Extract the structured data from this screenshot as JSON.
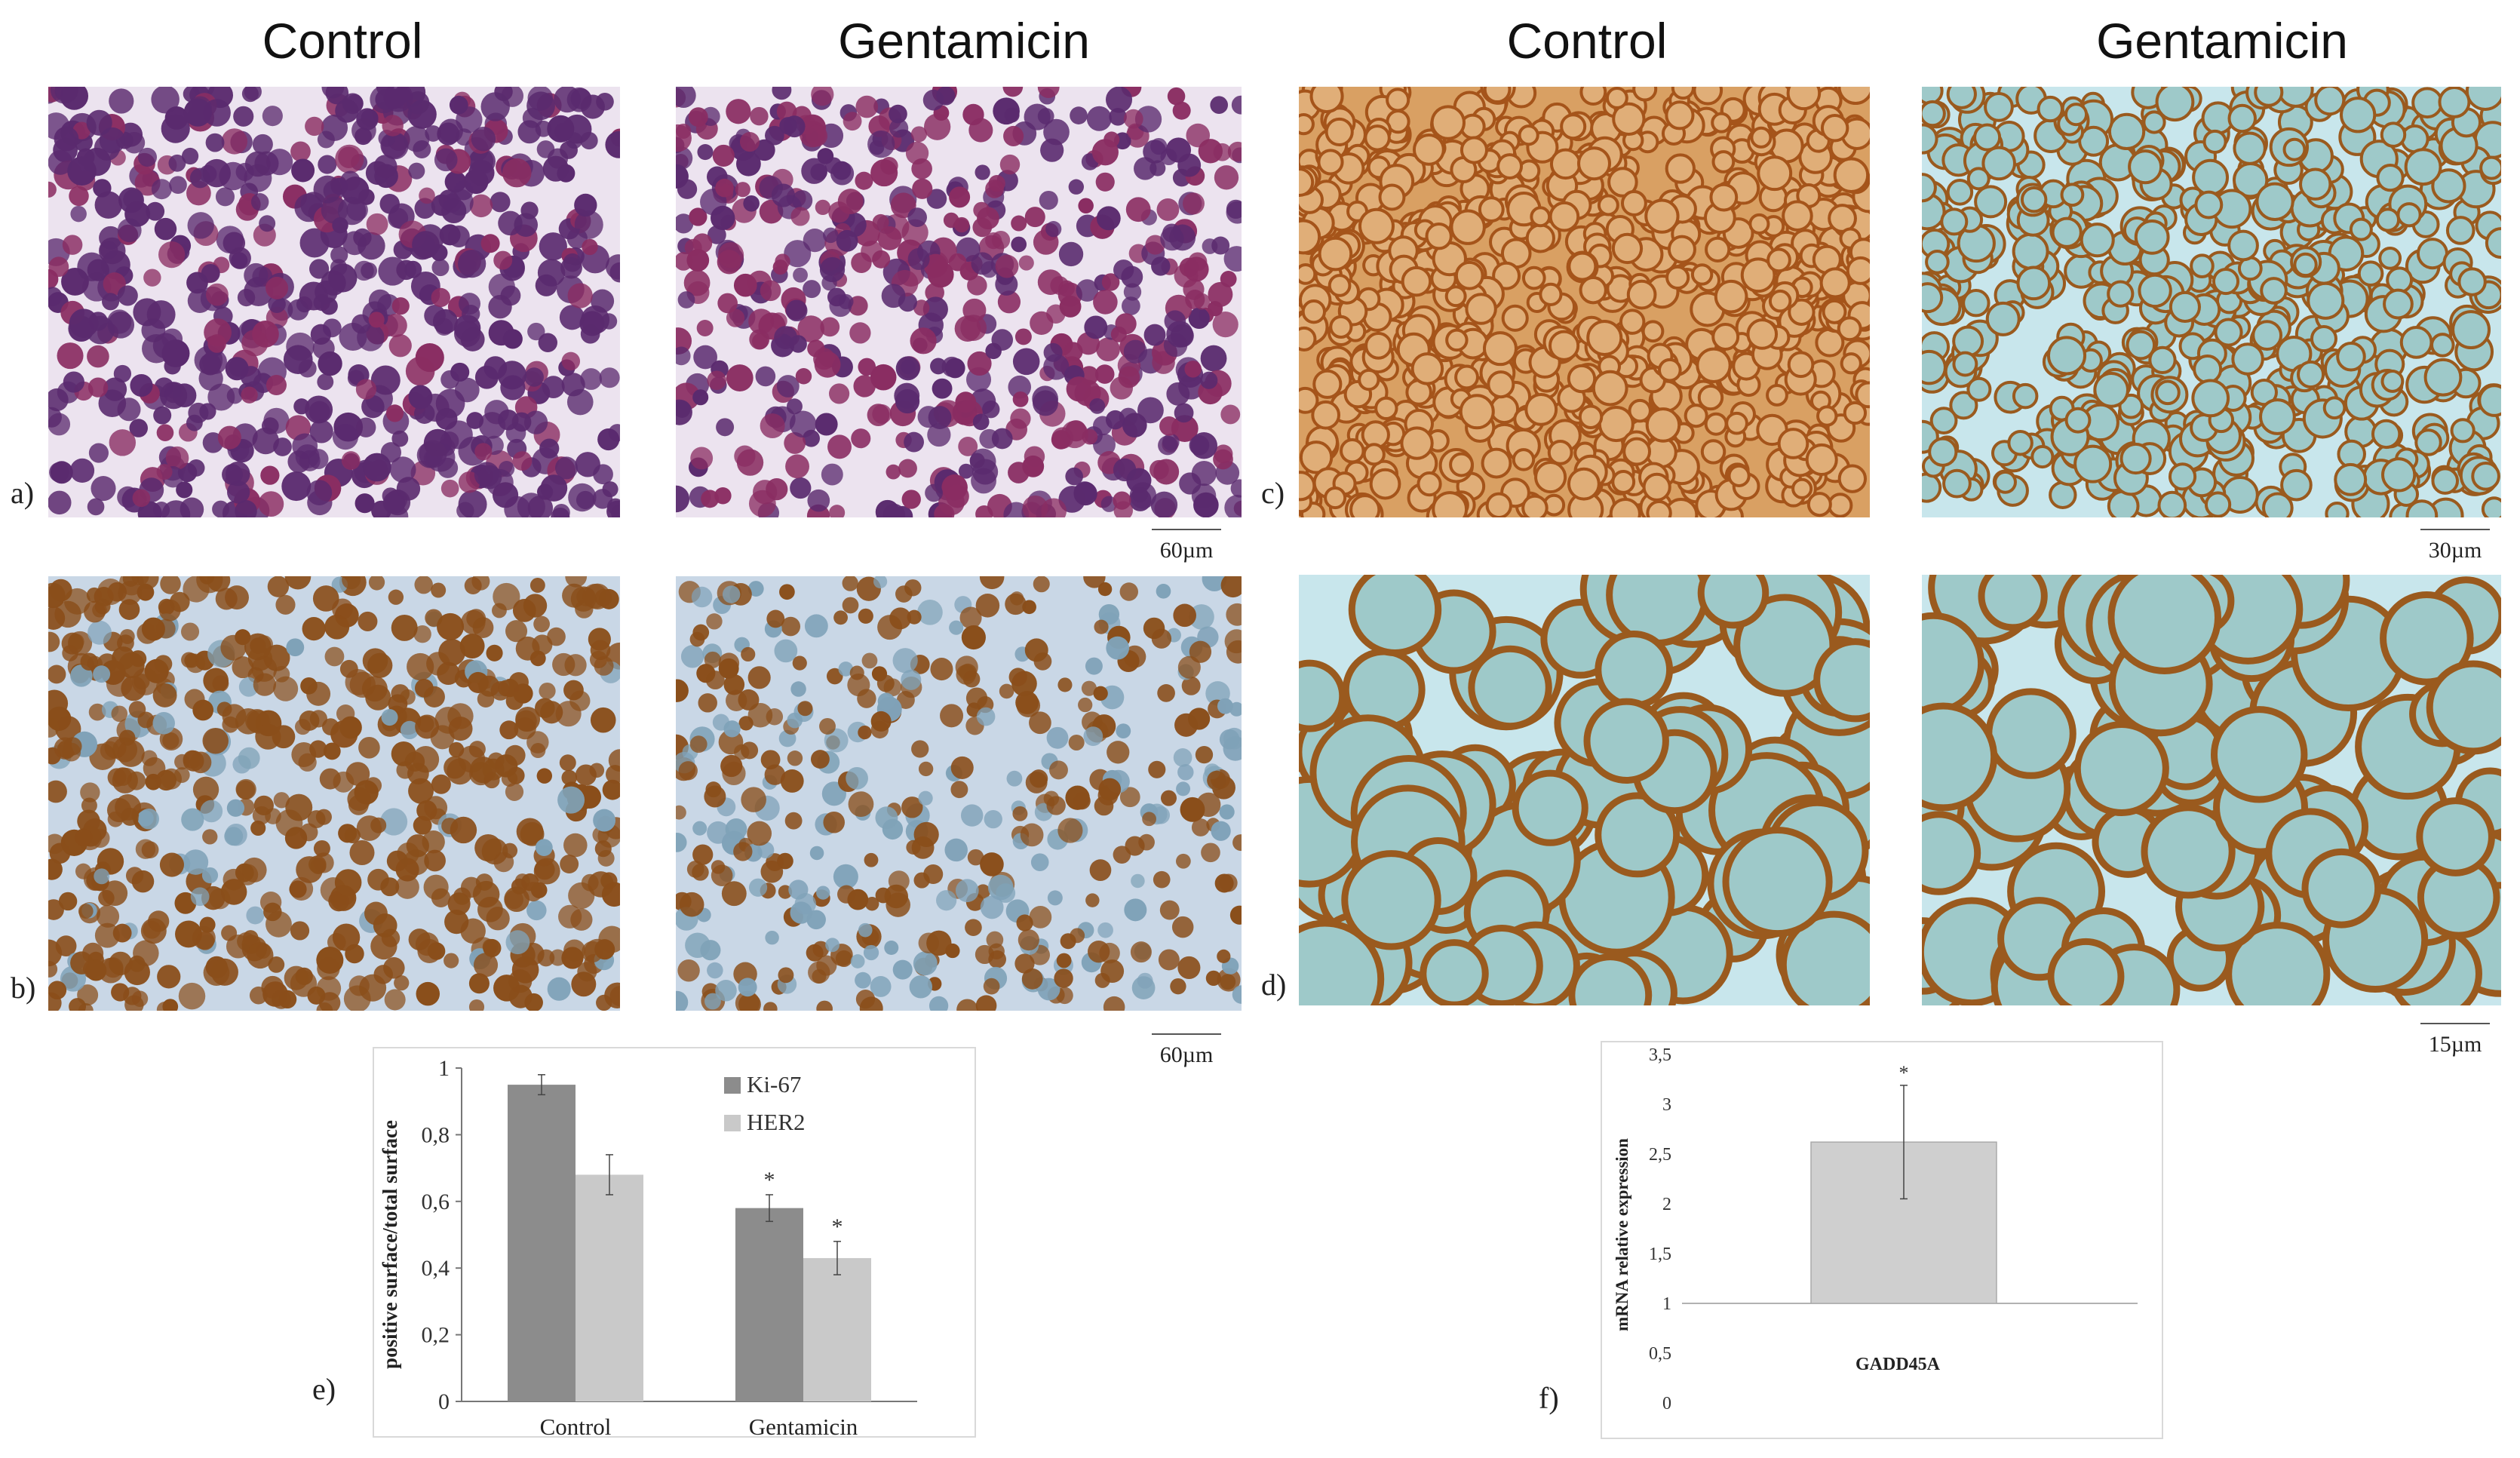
{
  "headers": {
    "left_control": "Control",
    "left_gentamicin": "Gentamicin",
    "right_control": "Control",
    "right_gentamicin": "Gentamicin"
  },
  "panel_labels": {
    "a": "a)",
    "b": "b)",
    "c": "c)",
    "d": "d)",
    "e": "e)",
    "f": "f)"
  },
  "scale_bars": {
    "a": "60µm",
    "b": "60µm",
    "c": "30µm",
    "d": "15µm"
  },
  "colors": {
    "he_bg": "#ece3ef",
    "he_cell": "#5a2a6e",
    "he_cell_alt": "#8a2d62",
    "ki_bg": "#c9d7e6",
    "ki_cell": "#8a4e1a",
    "her_bg": "#e7c29a",
    "her_ring": "#9a5a1e",
    "her_fill": "#9ec9c9",
    "bar_ki67": "#8c8c8c",
    "bar_her2": "#c9c9c9",
    "bar_gadd": "#cfcfcf"
  },
  "chart_data": [
    {
      "type": "bar",
      "panel": "e",
      "categories": [
        "Control",
        "Gentamicin"
      ],
      "series": [
        {
          "name": "Ki-67",
          "values": [
            0.95,
            0.58
          ],
          "errors": [
            0.03,
            0.04
          ],
          "significant": [
            false,
            true
          ]
        },
        {
          "name": "HER2",
          "values": [
            0.68,
            0.43
          ],
          "errors": [
            0.06,
            0.05
          ],
          "significant": [
            false,
            true
          ]
        }
      ],
      "ylabel": "positive surface/total surface",
      "ylim": [
        0,
        1
      ],
      "yticks": [
        "0",
        "0,2",
        "0,4",
        "0,6",
        "0,8",
        "1"
      ],
      "significance_marker": "*",
      "legend": "top-right"
    },
    {
      "type": "bar",
      "panel": "f",
      "categories": [
        "GADD45A"
      ],
      "values": [
        2.62
      ],
      "errors": [
        0.57
      ],
      "ylabel": "mRNA relative expression",
      "ylim": [
        0,
        3.5
      ],
      "baseline": 1,
      "yticks": [
        "0",
        "0,5",
        "1",
        "1,5",
        "2",
        "2,5",
        "3",
        "3,5"
      ],
      "significance_marker": "*"
    }
  ]
}
